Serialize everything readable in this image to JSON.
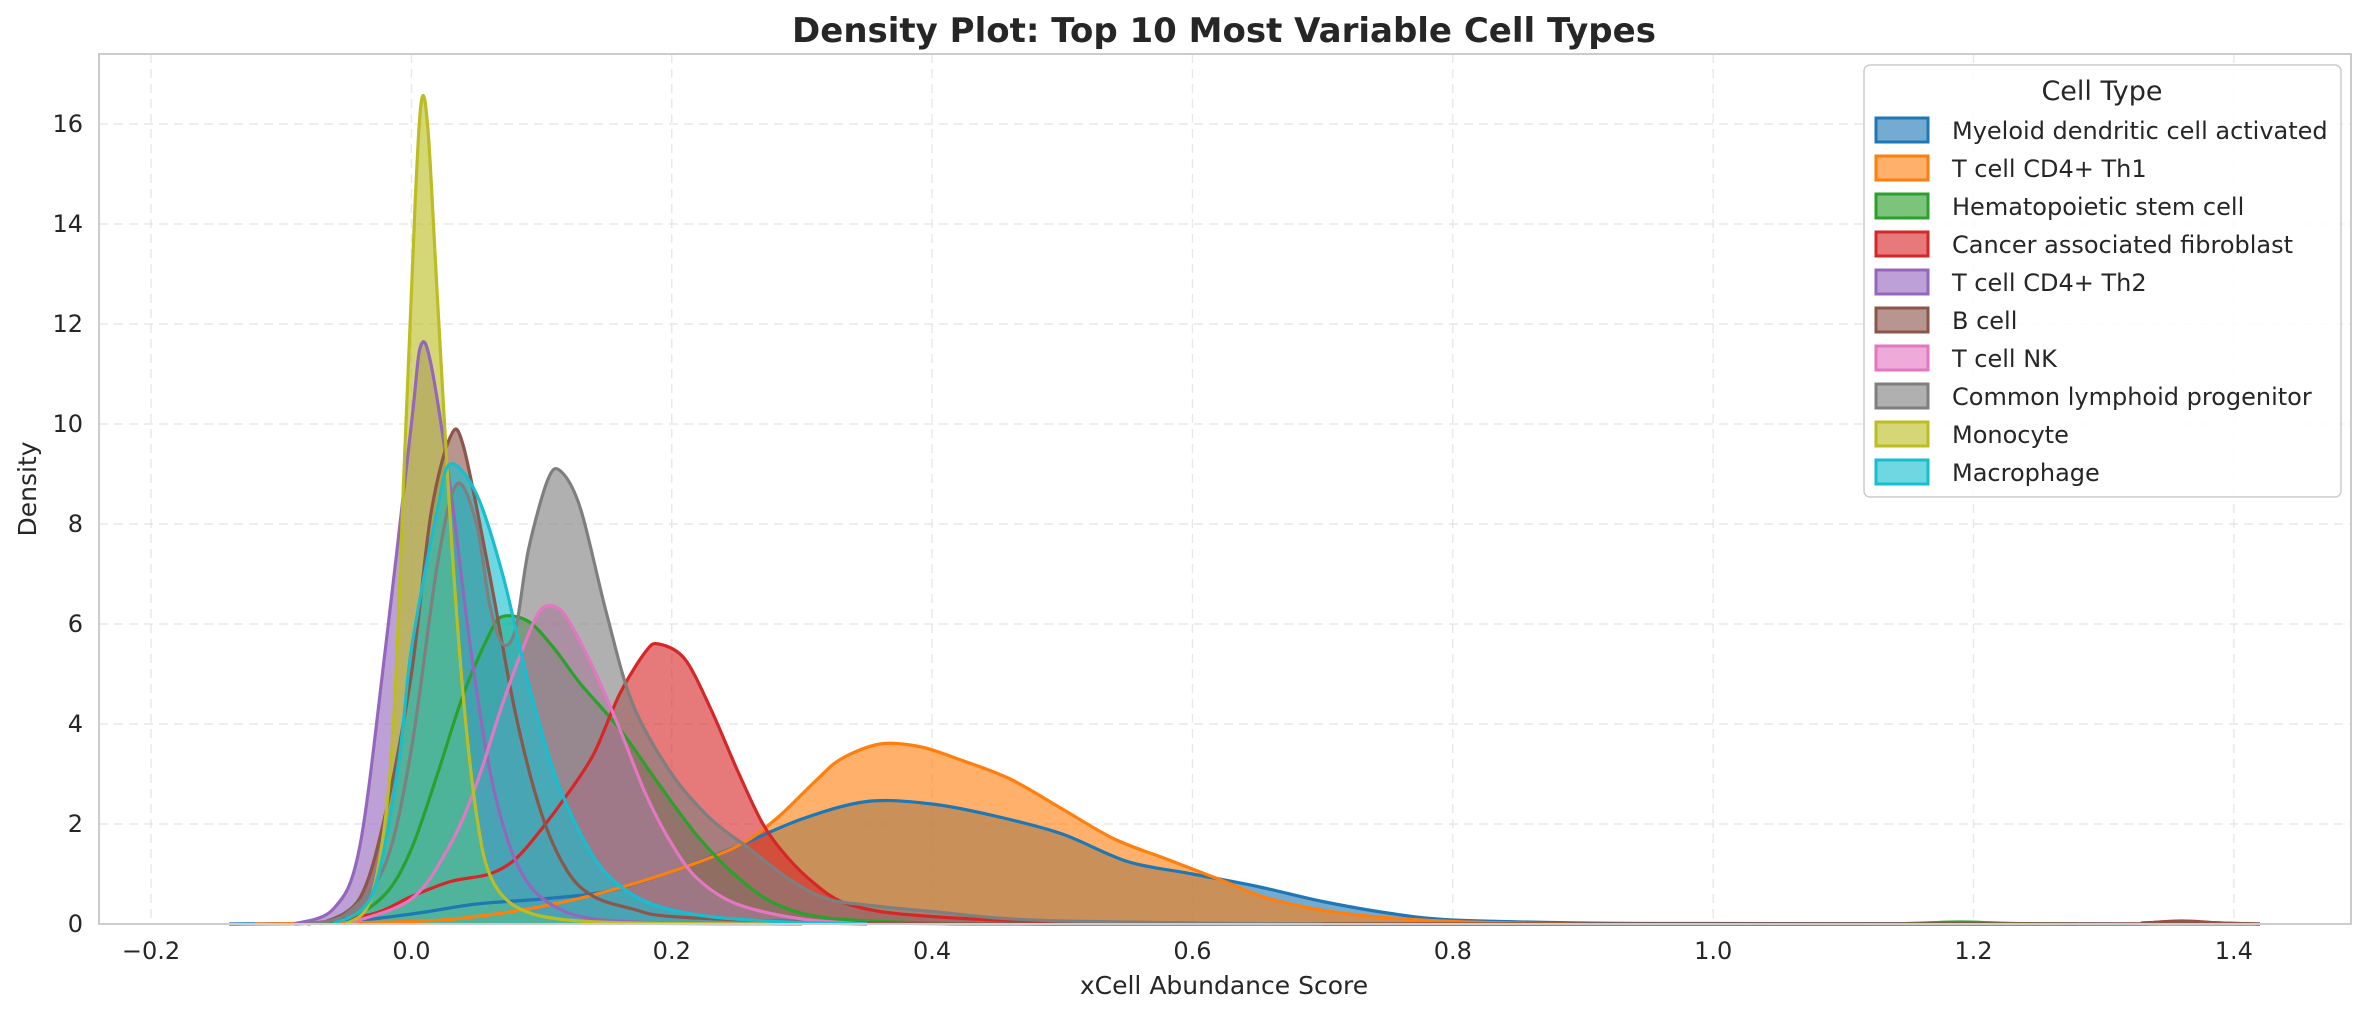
{
  "chart_data": {
    "type": "area",
    "title": "Density Plot: Top 10 Most Variable Cell Types",
    "xlabel": "xCell Abundance Score",
    "ylabel": "Density",
    "xlim": [
      -0.24,
      1.49
    ],
    "ylim": [
      0,
      17.4
    ],
    "x_ticks": [
      -0.2,
      0.0,
      0.2,
      0.4,
      0.6,
      0.8,
      1.0,
      1.2,
      1.4
    ],
    "x_tick_labels": [
      "−0.2",
      "0.0",
      "0.2",
      "0.4",
      "0.6",
      "0.8",
      "1.0",
      "1.2",
      "1.4"
    ],
    "y_ticks": [
      0,
      2,
      4,
      6,
      8,
      10,
      12,
      14,
      16
    ],
    "y_tick_labels": [
      "0",
      "2",
      "4",
      "6",
      "8",
      "10",
      "12",
      "14",
      "16"
    ],
    "grid": true,
    "legend_title": "Cell Type",
    "legend_position": "top-right",
    "series": [
      {
        "name": "Myeloid dendritic cell activated",
        "color": "#1f77b4",
        "points": [
          [
            -0.14,
            0
          ],
          [
            -0.06,
            0.03
          ],
          [
            0.0,
            0.2
          ],
          [
            0.05,
            0.4
          ],
          [
            0.1,
            0.5
          ],
          [
            0.15,
            0.65
          ],
          [
            0.2,
            1.05
          ],
          [
            0.25,
            1.55
          ],
          [
            0.3,
            2.1
          ],
          [
            0.35,
            2.45
          ],
          [
            0.4,
            2.4
          ],
          [
            0.45,
            2.15
          ],
          [
            0.5,
            1.8
          ],
          [
            0.55,
            1.25
          ],
          [
            0.6,
            1.0
          ],
          [
            0.65,
            0.75
          ],
          [
            0.7,
            0.45
          ],
          [
            0.75,
            0.22
          ],
          [
            0.8,
            0.08
          ],
          [
            0.9,
            0.02
          ],
          [
            1.0,
            0.01
          ],
          [
            1.2,
            0.005
          ],
          [
            1.42,
            0
          ]
        ]
      },
      {
        "name": "T cell CD4+ Th1",
        "color": "#ff7f0e",
        "points": [
          [
            -0.12,
            0
          ],
          [
            0.0,
            0.05
          ],
          [
            0.05,
            0.15
          ],
          [
            0.1,
            0.35
          ],
          [
            0.15,
            0.65
          ],
          [
            0.2,
            1.05
          ],
          [
            0.25,
            1.55
          ],
          [
            0.28,
            2.1
          ],
          [
            0.31,
            2.85
          ],
          [
            0.33,
            3.3
          ],
          [
            0.36,
            3.6
          ],
          [
            0.39,
            3.55
          ],
          [
            0.42,
            3.3
          ],
          [
            0.46,
            2.9
          ],
          [
            0.5,
            2.3
          ],
          [
            0.54,
            1.7
          ],
          [
            0.58,
            1.3
          ],
          [
            0.62,
            0.9
          ],
          [
            0.66,
            0.5
          ],
          [
            0.72,
            0.2
          ],
          [
            0.8,
            0.05
          ],
          [
            0.9,
            0
          ]
        ]
      },
      {
        "name": "Hematopoietic stem cell",
        "color": "#2ca02c",
        "points": [
          [
            -0.09,
            0
          ],
          [
            -0.05,
            0.1
          ],
          [
            -0.02,
            0.6
          ],
          [
            0.0,
            1.5
          ],
          [
            0.02,
            3.0
          ],
          [
            0.04,
            4.6
          ],
          [
            0.06,
            5.8
          ],
          [
            0.07,
            6.15
          ],
          [
            0.09,
            6.05
          ],
          [
            0.11,
            5.5
          ],
          [
            0.13,
            4.8
          ],
          [
            0.16,
            3.9
          ],
          [
            0.19,
            2.8
          ],
          [
            0.22,
            1.75
          ],
          [
            0.25,
            0.95
          ],
          [
            0.28,
            0.4
          ],
          [
            0.32,
            0.12
          ],
          [
            0.4,
            0.02
          ],
          [
            0.5,
            0
          ],
          [
            1.1,
            0
          ],
          [
            1.15,
            0.01
          ],
          [
            1.19,
            0.04
          ],
          [
            1.23,
            0.01
          ],
          [
            1.28,
            0
          ]
        ]
      },
      {
        "name": "Cancer associated fibroblast",
        "color": "#d62728",
        "points": [
          [
            -0.08,
            0
          ],
          [
            -0.03,
            0.2
          ],
          [
            0.0,
            0.55
          ],
          [
            0.03,
            0.85
          ],
          [
            0.06,
            1.0
          ],
          [
            0.08,
            1.3
          ],
          [
            0.1,
            1.9
          ],
          [
            0.12,
            2.6
          ],
          [
            0.14,
            3.4
          ],
          [
            0.16,
            4.6
          ],
          [
            0.18,
            5.45
          ],
          [
            0.19,
            5.6
          ],
          [
            0.21,
            5.3
          ],
          [
            0.23,
            4.3
          ],
          [
            0.25,
            3.1
          ],
          [
            0.27,
            2.0
          ],
          [
            0.29,
            1.3
          ],
          [
            0.31,
            0.8
          ],
          [
            0.33,
            0.45
          ],
          [
            0.36,
            0.25
          ],
          [
            0.4,
            0.15
          ],
          [
            0.45,
            0.08
          ],
          [
            0.5,
            0.05
          ],
          [
            0.6,
            0.02
          ],
          [
            0.7,
            0
          ],
          [
            1.3,
            0
          ],
          [
            1.33,
            0.02
          ],
          [
            1.36,
            0.06
          ],
          [
            1.39,
            0.02
          ],
          [
            1.42,
            0
          ]
        ]
      },
      {
        "name": "T cell CD4+ Th2",
        "color": "#9467bd",
        "points": [
          [
            -0.09,
            0
          ],
          [
            -0.06,
            0.3
          ],
          [
            -0.04,
            1.5
          ],
          [
            -0.02,
            5.5
          ],
          [
            0.0,
            10.0
          ],
          [
            0.007,
            11.55
          ],
          [
            0.015,
            11.2
          ],
          [
            0.03,
            8.7
          ],
          [
            0.045,
            5.6
          ],
          [
            0.06,
            3.1
          ],
          [
            0.075,
            1.6
          ],
          [
            0.09,
            0.8
          ],
          [
            0.11,
            0.35
          ],
          [
            0.14,
            0.1
          ],
          [
            0.2,
            0.02
          ],
          [
            0.3,
            0
          ]
        ]
      },
      {
        "name": "B cell",
        "color": "#8c564b",
        "points": [
          [
            -0.07,
            0
          ],
          [
            -0.04,
            0.5
          ],
          [
            -0.02,
            2.2
          ],
          [
            0.0,
            5.0
          ],
          [
            0.015,
            8.2
          ],
          [
            0.03,
            9.75
          ],
          [
            0.04,
            9.55
          ],
          [
            0.06,
            7.0
          ],
          [
            0.08,
            4.2
          ],
          [
            0.1,
            2.2
          ],
          [
            0.12,
            1.05
          ],
          [
            0.14,
            0.55
          ],
          [
            0.17,
            0.3
          ],
          [
            0.2,
            0.15
          ],
          [
            0.3,
            0.05
          ],
          [
            0.5,
            0
          ],
          [
            1.3,
            0
          ],
          [
            1.33,
            0.02
          ],
          [
            1.36,
            0.05
          ],
          [
            1.39,
            0.02
          ],
          [
            1.42,
            0
          ]
        ]
      },
      {
        "name": "T cell NK",
        "color": "#e377c2",
        "points": [
          [
            -0.05,
            0
          ],
          [
            0.0,
            0.5
          ],
          [
            0.03,
            1.6
          ],
          [
            0.05,
            2.8
          ],
          [
            0.07,
            4.4
          ],
          [
            0.09,
            5.8
          ],
          [
            0.1,
            6.3
          ],
          [
            0.11,
            6.35
          ],
          [
            0.12,
            6.1
          ],
          [
            0.14,
            5.1
          ],
          [
            0.16,
            3.9
          ],
          [
            0.18,
            2.6
          ],
          [
            0.2,
            1.6
          ],
          [
            0.22,
            0.9
          ],
          [
            0.25,
            0.4
          ],
          [
            0.3,
            0.1
          ],
          [
            0.35,
            0
          ]
        ]
      },
      {
        "name": "Common lymphoid progenitor",
        "color": "#7f7f7f",
        "points": [
          [
            -0.08,
            0
          ],
          [
            -0.05,
            0.2
          ],
          [
            -0.02,
            1.2
          ],
          [
            0.0,
            3.5
          ],
          [
            0.02,
            7.2
          ],
          [
            0.035,
            8.8
          ],
          [
            0.05,
            8.0
          ],
          [
            0.06,
            6.4
          ],
          [
            0.07,
            5.6
          ],
          [
            0.08,
            5.9
          ],
          [
            0.09,
            7.5
          ],
          [
            0.105,
            8.9
          ],
          [
            0.115,
            9.05
          ],
          [
            0.13,
            8.3
          ],
          [
            0.15,
            6.2
          ],
          [
            0.17,
            4.4
          ],
          [
            0.2,
            3.0
          ],
          [
            0.23,
            2.1
          ],
          [
            0.26,
            1.5
          ],
          [
            0.29,
            0.9
          ],
          [
            0.32,
            0.5
          ],
          [
            0.36,
            0.35
          ],
          [
            0.4,
            0.25
          ],
          [
            0.45,
            0.12
          ],
          [
            0.5,
            0.06
          ],
          [
            0.6,
            0.02
          ],
          [
            0.7,
            0
          ]
        ]
      },
      {
        "name": "Monocyte",
        "color": "#bcbd22",
        "points": [
          [
            -0.05,
            0
          ],
          [
            -0.03,
            0.6
          ],
          [
            -0.015,
            3.5
          ],
          [
            -0.005,
            9.5
          ],
          [
            0.003,
            14.5
          ],
          [
            0.008,
            16.5
          ],
          [
            0.013,
            15.8
          ],
          [
            0.02,
            12.5
          ],
          [
            0.03,
            8.0
          ],
          [
            0.04,
            4.5
          ],
          [
            0.05,
            2.2
          ],
          [
            0.06,
            1.0
          ],
          [
            0.08,
            0.35
          ],
          [
            0.12,
            0.08
          ],
          [
            0.2,
            0.01
          ],
          [
            0.3,
            0
          ]
        ]
      },
      {
        "name": "Macrophage",
        "color": "#17becf",
        "points": [
          [
            -0.06,
            0
          ],
          [
            -0.03,
            0.6
          ],
          [
            -0.01,
            3.2
          ],
          [
            0.0,
            5.5
          ],
          [
            0.02,
            8.3
          ],
          [
            0.03,
            9.2
          ],
          [
            0.05,
            8.6
          ],
          [
            0.07,
            7.0
          ],
          [
            0.09,
            4.8
          ],
          [
            0.11,
            3.0
          ],
          [
            0.13,
            1.8
          ],
          [
            0.15,
            1.0
          ],
          [
            0.18,
            0.45
          ],
          [
            0.22,
            0.18
          ],
          [
            0.28,
            0.05
          ],
          [
            0.35,
            0
          ]
        ]
      }
    ]
  }
}
